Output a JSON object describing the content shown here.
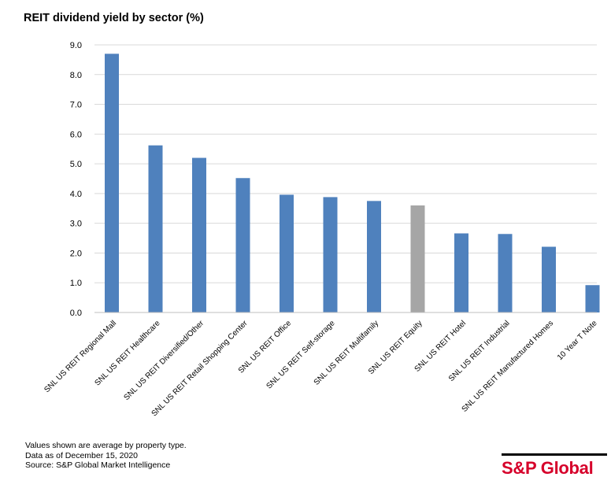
{
  "title": "REIT dividend yield by sector (%)",
  "chart_data": {
    "type": "bar",
    "title": "REIT dividend yield by sector (%)",
    "categories": [
      "SNL US REIT Regional Mall",
      "SNL US REIT Healthcare",
      "SNL US REIT Diversified/Other",
      "SNL US REIT Retail Shopping Center",
      "SNL US REIT Office",
      "SNL US REIT Self-storage",
      "SNL US REIT Multifamily",
      "SNL US REIT Equity",
      "SNL US REIT Hotel",
      "SNL US REIT Industrial",
      "SNL US REIT Manufactured Homes",
      "10 Year T Note"
    ],
    "values": [
      8.7,
      5.62,
      5.2,
      4.52,
      3.96,
      3.88,
      3.75,
      3.6,
      2.66,
      2.64,
      2.21,
      0.92
    ],
    "ylim": [
      0,
      9
    ],
    "yticks": [
      "0.0",
      "1.0",
      "2.0",
      "3.0",
      "4.0",
      "5.0",
      "6.0",
      "7.0",
      "8.0",
      "9.0"
    ],
    "grid": true,
    "colors": {
      "default": "#4F81BD",
      "highlight": "#A6A6A6",
      "highlight_category": "SNL US REIT Equity",
      "grid": "#D9D9D9"
    }
  },
  "notes": [
    "Values shown are average by property type.",
    "Data as of December 15, 2020",
    "Source: S&P Global Market Intelligence"
  ],
  "logo": {
    "text": "S&P Global",
    "color": "#D6002A"
  }
}
